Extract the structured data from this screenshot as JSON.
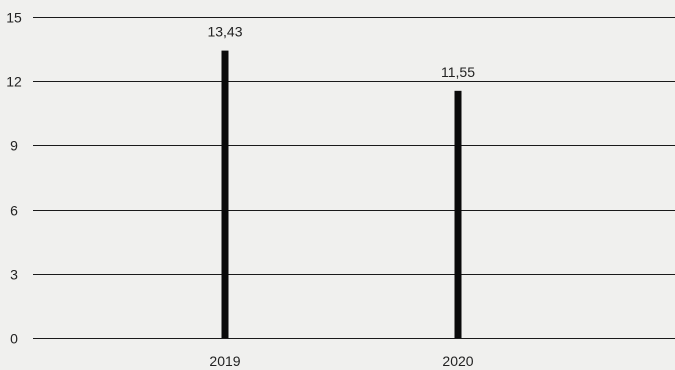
{
  "chart_data": {
    "type": "bar",
    "title": "",
    "xlabel": "",
    "ylabel": "",
    "categories": [
      "2019",
      "2020"
    ],
    "values": [
      13.43,
      11.55
    ],
    "data_labels": [
      "13,43",
      "11,55"
    ],
    "ylim": [
      0,
      15
    ],
    "yticks": [
      0,
      3,
      6,
      9,
      12,
      15
    ],
    "grid": true,
    "legend": "none",
    "colors": {
      "background": "#f0f0ee",
      "bar": "#0a0a0a",
      "grid": "#1a1a1a",
      "text": "#222222"
    }
  }
}
